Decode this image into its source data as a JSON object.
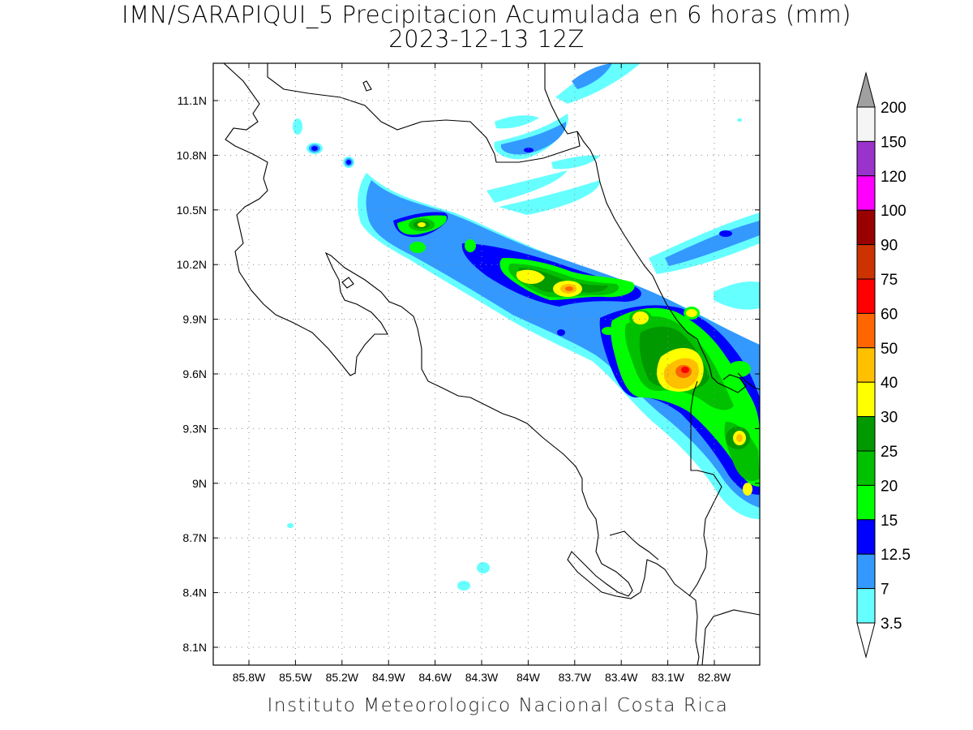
{
  "title": {
    "line1": "IMN/SARAPIQUI_5 Precipitacion Acumulada en 6 horas (mm)",
    "line2": "2023-12-13 12Z"
  },
  "credit": "Instituto Meteorologico Nacional Costa Rica",
  "axes": {
    "x_ticks": [
      "85.8W",
      "85.5W",
      "85.2W",
      "84.9W",
      "84.6W",
      "84.3W",
      "84W",
      "83.7W",
      "83.4W",
      "83.1W",
      "82.8W"
    ],
    "y_ticks": [
      "11.1N",
      "10.8N",
      "10.5N",
      "10.2N",
      "9.9N",
      "9.6N",
      "9.3N",
      "9N",
      "8.7N",
      "8.4N",
      "8.1N"
    ],
    "grid": "dotted"
  },
  "colorbar": {
    "labels": [
      "200",
      "150",
      "120",
      "100",
      "90",
      "75",
      "60",
      "50",
      "40",
      "30",
      "25",
      "20",
      "15",
      "12.5",
      "7",
      "3.5"
    ],
    "colors": [
      "#f5f5f5",
      "#9933cc",
      "#ff00ff",
      "#990000",
      "#cc3300",
      "#ff0000",
      "#ff6600",
      "#ffc000",
      "#ffff00",
      "#009900",
      "#00c000",
      "#00ff00",
      "#0000ff",
      "#3399ff",
      "#66ffff"
    ],
    "top_arrow_color": "#a0a0a0",
    "bottom_arrow_color": "#ffffff"
  }
}
